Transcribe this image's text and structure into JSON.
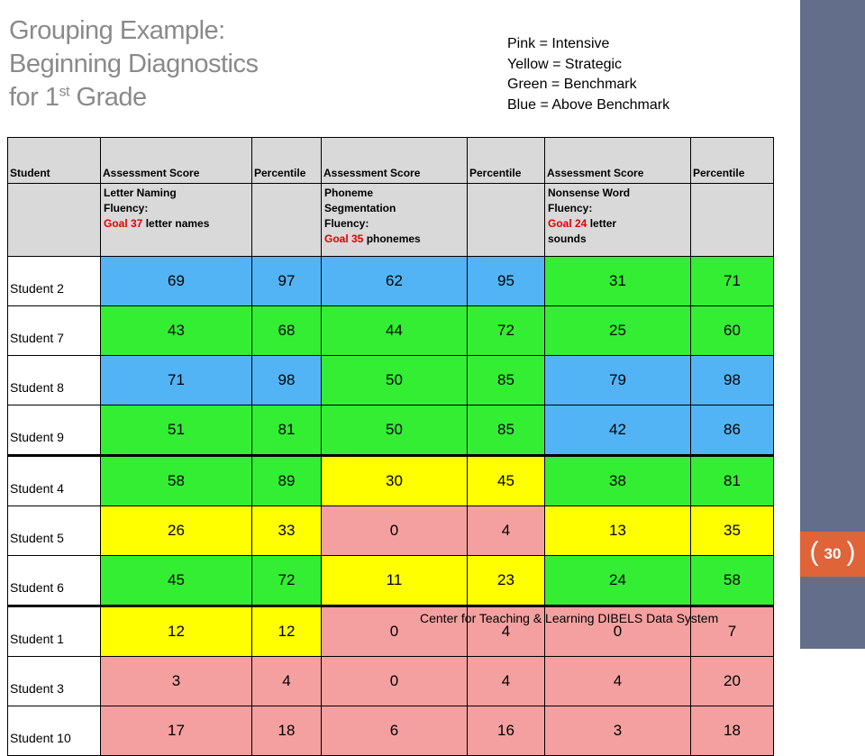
{
  "title": {
    "line1": "Grouping Example:",
    "line2": "Beginning Diagnostics",
    "line3_pre": "for 1",
    "line3_sup": "st",
    "line3_post": " Grade"
  },
  "legend": [
    "Pink = Intensive",
    "Yellow = Strategic",
    "Green = Benchmark",
    "Blue = Above Benchmark"
  ],
  "colors": {
    "pink": "#f4a0a0",
    "yellow": "#ffff00",
    "green": "#33ee33",
    "blue": "#52b4f4"
  },
  "headers": [
    "Student",
    "Assessment Score",
    "Percentile",
    "Assessment Score",
    "Percentile",
    "Assessment Score",
    "Percentile"
  ],
  "measures": [
    {
      "line1": "Letter Naming",
      "line2": "Fluency:",
      "goal_label": "Goal 37",
      "goal_rest": " letter names"
    },
    {
      "line1": "Phoneme",
      "line2": "Segmentation",
      "line3": "Fluency:",
      "goal_label": "Goal 35",
      "goal_rest": " phonemes"
    },
    {
      "line1": "Nonsense Word",
      "line2": "Fluency:",
      "goal_label": "Goal 24",
      "goal_rest": " letter",
      "line4": "sounds"
    }
  ],
  "rows": [
    {
      "student": "Student 2",
      "values": [
        "69",
        "97",
        "62",
        "95",
        "31",
        "71"
      ],
      "colors": [
        "blue",
        "blue",
        "blue",
        "blue",
        "green",
        "green"
      ]
    },
    {
      "student": "Student 7",
      "values": [
        "43",
        "68",
        "44",
        "72",
        "25",
        "60"
      ],
      "colors": [
        "green",
        "green",
        "green",
        "green",
        "green",
        "green"
      ]
    },
    {
      "student": "Student 8",
      "values": [
        "71",
        "98",
        "50",
        "85",
        "79",
        "98"
      ],
      "colors": [
        "blue",
        "blue",
        "green",
        "green",
        "blue",
        "blue"
      ]
    },
    {
      "student": "Student 9",
      "values": [
        "51",
        "81",
        "50",
        "85",
        "42",
        "86"
      ],
      "colors": [
        "green",
        "green",
        "green",
        "green",
        "blue",
        "blue"
      ]
    },
    {
      "student": "Student 4",
      "values": [
        "58",
        "89",
        "30",
        "45",
        "38",
        "81"
      ],
      "colors": [
        "green",
        "green",
        "yellow",
        "yellow",
        "green",
        "green"
      ]
    },
    {
      "student": "Student 5",
      "values": [
        "26",
        "33",
        "0",
        "4",
        "13",
        "35"
      ],
      "colors": [
        "yellow",
        "yellow",
        "pink",
        "pink",
        "yellow",
        "yellow"
      ]
    },
    {
      "student": "Student 6",
      "values": [
        "45",
        "72",
        "11",
        "23",
        "24",
        "58"
      ],
      "colors": [
        "green",
        "green",
        "yellow",
        "yellow",
        "green",
        "green"
      ]
    },
    {
      "student": "Student 1",
      "values": [
        "12",
        "12",
        "0",
        "4",
        "0",
        "7"
      ],
      "colors": [
        "yellow",
        "yellow",
        "pink",
        "pink",
        "pink",
        "pink"
      ]
    },
    {
      "student": "Student 3",
      "values": [
        "3",
        "4",
        "0",
        "4",
        "4",
        "20"
      ],
      "colors": [
        "pink",
        "pink",
        "pink",
        "pink",
        "pink",
        "pink"
      ]
    },
    {
      "student": "Student 10",
      "values": [
        "17",
        "18",
        "6",
        "16",
        "3",
        "18"
      ],
      "colors": [
        "pink",
        "pink",
        "pink",
        "pink",
        "pink",
        "pink"
      ]
    }
  ],
  "group_break_after_rows": [
    3,
    6
  ],
  "footer": "Center for Teaching & Learning DIBELS Data System",
  "page_number": "30"
}
